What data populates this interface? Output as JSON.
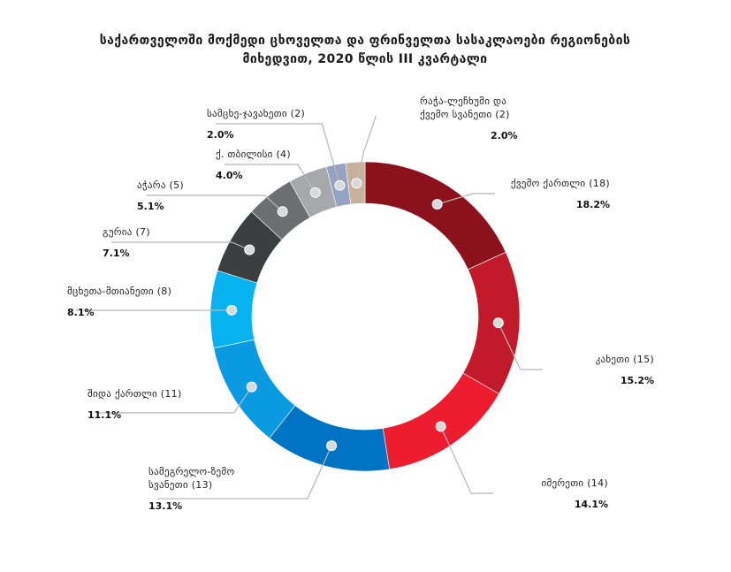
{
  "title_lines": [
    "საქართველოში მოქმედი ცხოველთა და ფრინველთა სასაკლაოები რეგიონების",
    "მიხედვით, 2020 წლის III კვარტალი"
  ],
  "chart_data": {
    "type": "pie",
    "donut": true,
    "title": "საქართველოში მოქმედი ცხოველთა და ფრინველთა სასაკლაოები რეგიონების მიხედვით, 2020 წლის III კვარტალი",
    "slices": [
      {
        "label_lines": [
          "ქვემო ქართლი (18)"
        ],
        "value": 18,
        "percent": "18.2%",
        "color": "#8b111c"
      },
      {
        "label_lines": [
          "კახეთი (15)"
        ],
        "value": 15,
        "percent": "15.2%",
        "color": "#c21a2a"
      },
      {
        "label_lines": [
          "იმერეთი (14)"
        ],
        "value": 14,
        "percent": "14.1%",
        "color": "#ed1c2e"
      },
      {
        "label_lines": [
          "სამეგრელო-ზემო",
          "სვანეთი (13)"
        ],
        "value": 13,
        "percent": "13.1%",
        "color": "#0073c4"
      },
      {
        "label_lines": [
          "შიდა ქართლი (11)"
        ],
        "value": 11,
        "percent": "11.1%",
        "color": "#0a9ae2"
      },
      {
        "label_lines": [
          "მცხეთა-მთიანეთი (8)"
        ],
        "value": 8,
        "percent": "8.1%",
        "color": "#06b3ee"
      },
      {
        "label_lines": [
          "გურია (7)"
        ],
        "value": 7,
        "percent": "7.1%",
        "color": "#3d3e40"
      },
      {
        "label_lines": [
          "აჭარა (5)"
        ],
        "value": 5,
        "percent": "5.1%",
        "color": "#6d6e70"
      },
      {
        "label_lines": [
          "ქ. თბილისი (4)"
        ],
        "value": 4,
        "percent": "4.0%",
        "color": "#a6a8ab"
      },
      {
        "label_lines": [
          "სამცხე-ჯავახეთი (2)"
        ],
        "value": 2,
        "percent": "2.0%",
        "color": "#93a3c1"
      },
      {
        "label_lines": [
          "რაჭა-ლეჩხუმი და",
          "ქვემო სვანეთი (2)"
        ],
        "value": 2,
        "percent": "2.0%",
        "color": "#c7b19c"
      }
    ]
  }
}
